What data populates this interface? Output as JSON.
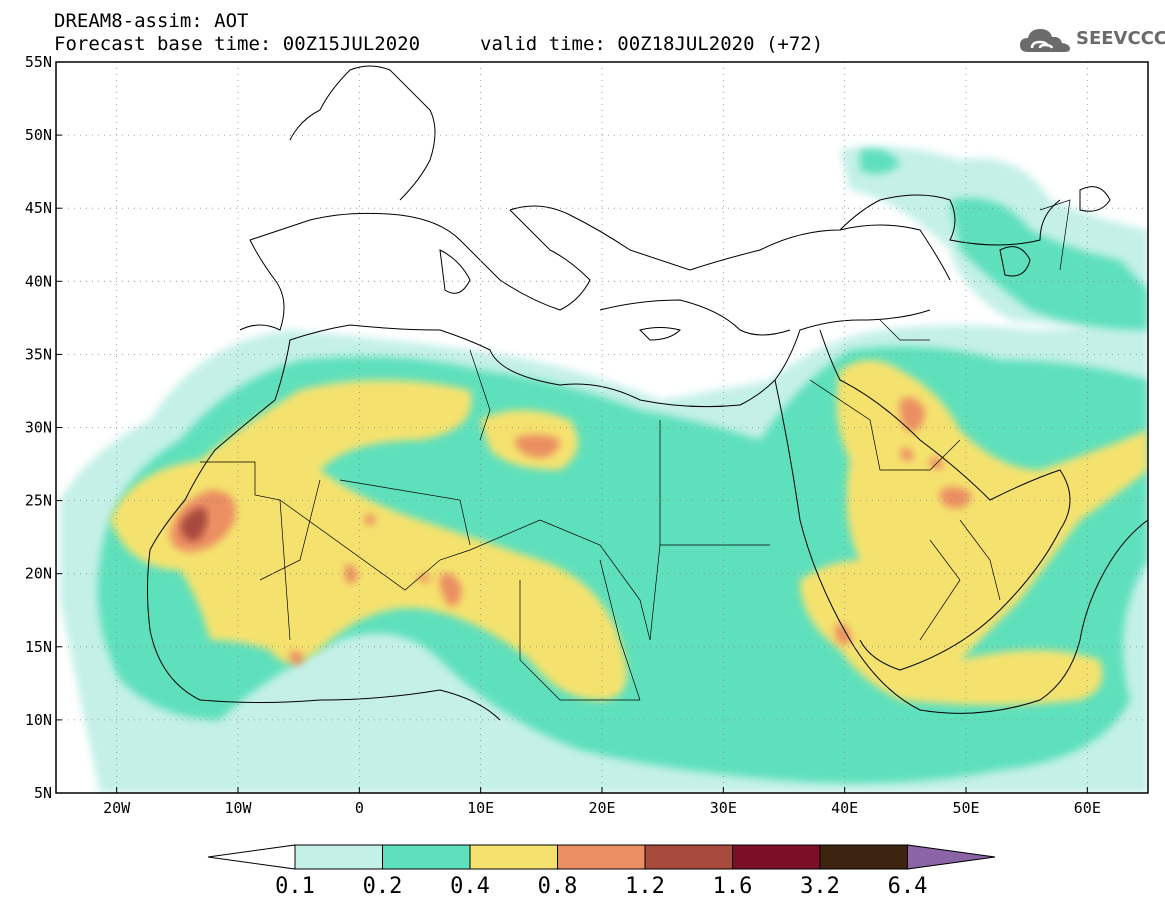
{
  "header": {
    "model_line": "DREAM8-assim: AOT",
    "base_time": "Forecast base time: 00Z15JUL2020",
    "valid_time": "valid time: 00Z18JUL2020 (+72)"
  },
  "logo": {
    "text": "SEEVCCC",
    "icon": "cloud-icon"
  },
  "map": {
    "lon_range": [
      -25,
      65
    ],
    "lat_range": [
      5,
      55
    ],
    "lat_ticks": [
      {
        "value": 55,
        "label": "55N"
      },
      {
        "value": 50,
        "label": "50N"
      },
      {
        "value": 45,
        "label": "45N"
      },
      {
        "value": 40,
        "label": "40N"
      },
      {
        "value": 35,
        "label": "35N"
      },
      {
        "value": 30,
        "label": "30N"
      },
      {
        "value": 25,
        "label": "25N"
      },
      {
        "value": 20,
        "label": "20N"
      },
      {
        "value": 15,
        "label": "15N"
      },
      {
        "value": 10,
        "label": "10N"
      },
      {
        "value": 5,
        "label": "5N"
      }
    ],
    "lon_ticks": [
      {
        "value": -20,
        "label": "20W"
      },
      {
        "value": -10,
        "label": "10W"
      },
      {
        "value": 0,
        "label": "0"
      },
      {
        "value": 10,
        "label": "10E"
      },
      {
        "value": 20,
        "label": "20E"
      },
      {
        "value": 30,
        "label": "30E"
      },
      {
        "value": 40,
        "label": "40E"
      },
      {
        "value": 50,
        "label": "50E"
      },
      {
        "value": 60,
        "label": "60E"
      }
    ],
    "grid": true
  },
  "colorbar": {
    "levels": [
      "0.1",
      "0.2",
      "0.4",
      "0.8",
      "1.2",
      "1.6",
      "3.2",
      "6.4"
    ],
    "colors": [
      "#c4f0e8",
      "#5ee0bc",
      "#f5e26e",
      "#eb8e62",
      "#a84a3c",
      "#7b0f27",
      "#3c2410",
      "#8a64a6"
    ],
    "under_color": "#ffffff"
  }
}
